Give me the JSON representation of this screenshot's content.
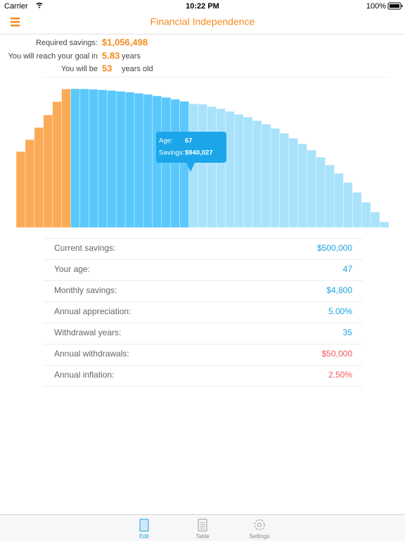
{
  "status_bar": {
    "carrier": "Carrier",
    "time": "10:22 PM",
    "battery": "100%"
  },
  "header": {
    "title": "Financial Independence"
  },
  "summary": {
    "required_label": "Required savings:",
    "required_value": "$1,056,498",
    "reach_label": "You will reach your goal in",
    "reach_value": "5.83",
    "reach_unit": "years",
    "age_label": "You will be",
    "age_value": "53",
    "age_unit": "years old"
  },
  "chart": {
    "type": "bar",
    "series": [
      {
        "color": "#fbab57",
        "values": [
          579000,
          670000,
          762000,
          858000,
          960000,
          1056498
        ]
      },
      {
        "color": "#5ac8fb",
        "values": [
          1058000,
          1057000,
          1054000,
          1050000,
          1045000,
          1039000,
          1032000,
          1024000,
          1015000,
          1004000,
          992000,
          978000,
          962000
        ]
      },
      {
        "color": "#a9e2fb",
        "values": [
          944000,
          940027,
          922000,
          906000,
          885000,
          863000,
          842000,
          815000,
          788000,
          756000,
          719000,
          681000,
          638000,
          590000,
          536000,
          477000,
          413000,
          343000,
          268000,
          193000,
          118000,
          43000
        ]
      }
    ],
    "tooltip": {
      "age_label": "Age:",
      "age_value": "67",
      "savings_label": "Savings:",
      "savings_value": "$940,027",
      "color": "#1ba6e9"
    }
  },
  "settings": [
    {
      "label": "Current savings:",
      "value": "$500,000",
      "color": "#1ba3e2"
    },
    {
      "label": "Your age:",
      "value": "47",
      "color": "#1ba3e2"
    },
    {
      "label": "Monthly savings:",
      "value": "$4,800",
      "color": "#1ba3e2"
    },
    {
      "label": "Annual appreciation:",
      "value": "5.00%",
      "color": "#1ba3e2"
    },
    {
      "label": "Withdrawal years:",
      "value": "35",
      "color": "#1ba3e2"
    },
    {
      "label": "Annual withdrawals:",
      "value": "$50,000",
      "color": "#f2595b"
    },
    {
      "label": "Annual inflation:",
      "value": "2.50%",
      "color": "#f2595b"
    }
  ],
  "tab_bar": {
    "tabs": [
      "Edit",
      "Table",
      "Settings"
    ]
  }
}
